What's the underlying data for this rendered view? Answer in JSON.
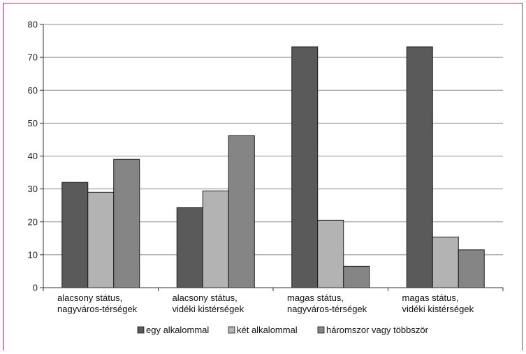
{
  "chart_data": {
    "type": "bar",
    "categories": [
      [
        "alacsony státus,",
        "nagyváros-térségek"
      ],
      [
        "alacsony státus,",
        "vidéki kistérségek"
      ],
      [
        "magas státus,",
        "nagyváros-térségek"
      ],
      [
        "magas státus,",
        "vidéki kistérségek"
      ]
    ],
    "series": [
      {
        "name": "egy alkalommal",
        "values": [
          32,
          24.3,
          73.2,
          73.2
        ],
        "color": "#5a5a5a"
      },
      {
        "name": "két alkalommal",
        "values": [
          29,
          29.4,
          20.5,
          15.4
        ],
        "color": "#b3b3b3"
      },
      {
        "name": "háromszor vagy többször",
        "values": [
          39,
          46.2,
          6.5,
          11.5
        ],
        "color": "#858585"
      }
    ],
    "ylim": [
      0,
      80
    ],
    "yticks": [
      0,
      10,
      20,
      30,
      40,
      50,
      60,
      70,
      80
    ],
    "grid": true,
    "legend_position": "bottom"
  }
}
